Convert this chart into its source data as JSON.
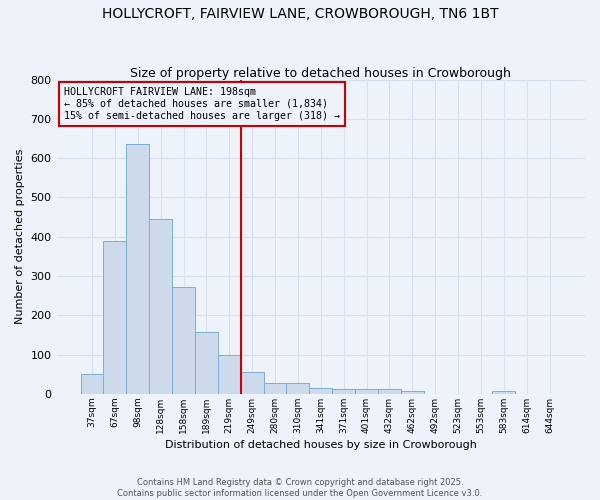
{
  "title": "HOLLYCROFT, FAIRVIEW LANE, CROWBOROUGH, TN6 1BT",
  "subtitle": "Size of property relative to detached houses in Crowborough",
  "xlabel": "Distribution of detached houses by size in Crowborough",
  "ylabel": "Number of detached properties",
  "bin_labels": [
    "37sqm",
    "67sqm",
    "98sqm",
    "128sqm",
    "158sqm",
    "189sqm",
    "219sqm",
    "249sqm",
    "280sqm",
    "310sqm",
    "341sqm",
    "371sqm",
    "401sqm",
    "432sqm",
    "462sqm",
    "492sqm",
    "523sqm",
    "553sqm",
    "583sqm",
    "614sqm",
    "644sqm"
  ],
  "bar_heights": [
    50,
    390,
    635,
    445,
    272,
    157,
    100,
    55,
    29,
    29,
    15,
    13,
    12,
    12,
    8,
    0,
    0,
    0,
    7,
    0,
    0
  ],
  "bar_color": "#ccdaeb",
  "bar_edgecolor": "#7bafd4",
  "vline_x": 6.5,
  "vline_color": "#cc0000",
  "ylim": [
    0,
    800
  ],
  "yticks": [
    0,
    100,
    200,
    300,
    400,
    500,
    600,
    700,
    800
  ],
  "annotation_text": "HOLLYCROFT FAIRVIEW LANE: 198sqm\n← 85% of detached houses are smaller (1,834)\n15% of semi-detached houses are larger (318) →",
  "annotation_box_edgecolor": "#cc0000",
  "footer": "Contains HM Land Registry data © Crown copyright and database right 2025.\nContains public sector information licensed under the Open Government Licence v3.0.",
  "bg_color": "#eef2fa",
  "grid_color": "#d8e0f0",
  "title_fontsize": 10,
  "subtitle_fontsize": 9
}
